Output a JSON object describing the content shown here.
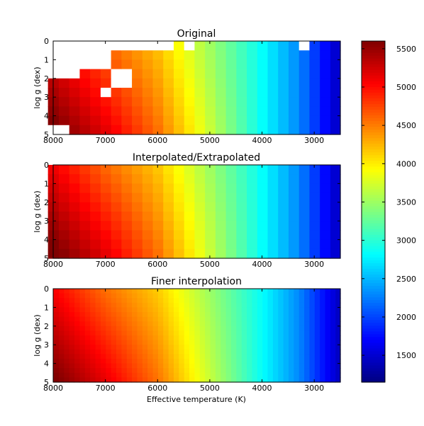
{
  "chart_data": {
    "type": "heatmap",
    "figure": {
      "shared_xlabel": "Effective temperature (K)",
      "colormap": "jet",
      "colorbar_ticks": [
        1500,
        2000,
        2500,
        3000,
        3500,
        4000,
        4500,
        5000,
        5500
      ],
      "colorbar_range": [
        1150,
        5600
      ]
    },
    "x_range": [
      8000,
      2500
    ],
    "y_range": [
      0,
      5
    ],
    "x_ticks": [
      8000,
      7000,
      6000,
      5000,
      4000,
      3000
    ],
    "y_ticks": [
      0,
      1,
      2,
      3,
      4,
      5
    ],
    "ylabel": "log g (dex)",
    "panels": [
      {
        "title": "Original",
        "x_step": 200,
        "y_step": 0.5,
        "masked_grid": true
      },
      {
        "title": "Interpolated/Extrapolated",
        "x_step": 200,
        "y_step": 0.5,
        "masked_grid": false
      },
      {
        "title": "Finer interpolation",
        "x_step": 100,
        "y_step": 0.25,
        "masked_grid": false
      }
    ]
  }
}
